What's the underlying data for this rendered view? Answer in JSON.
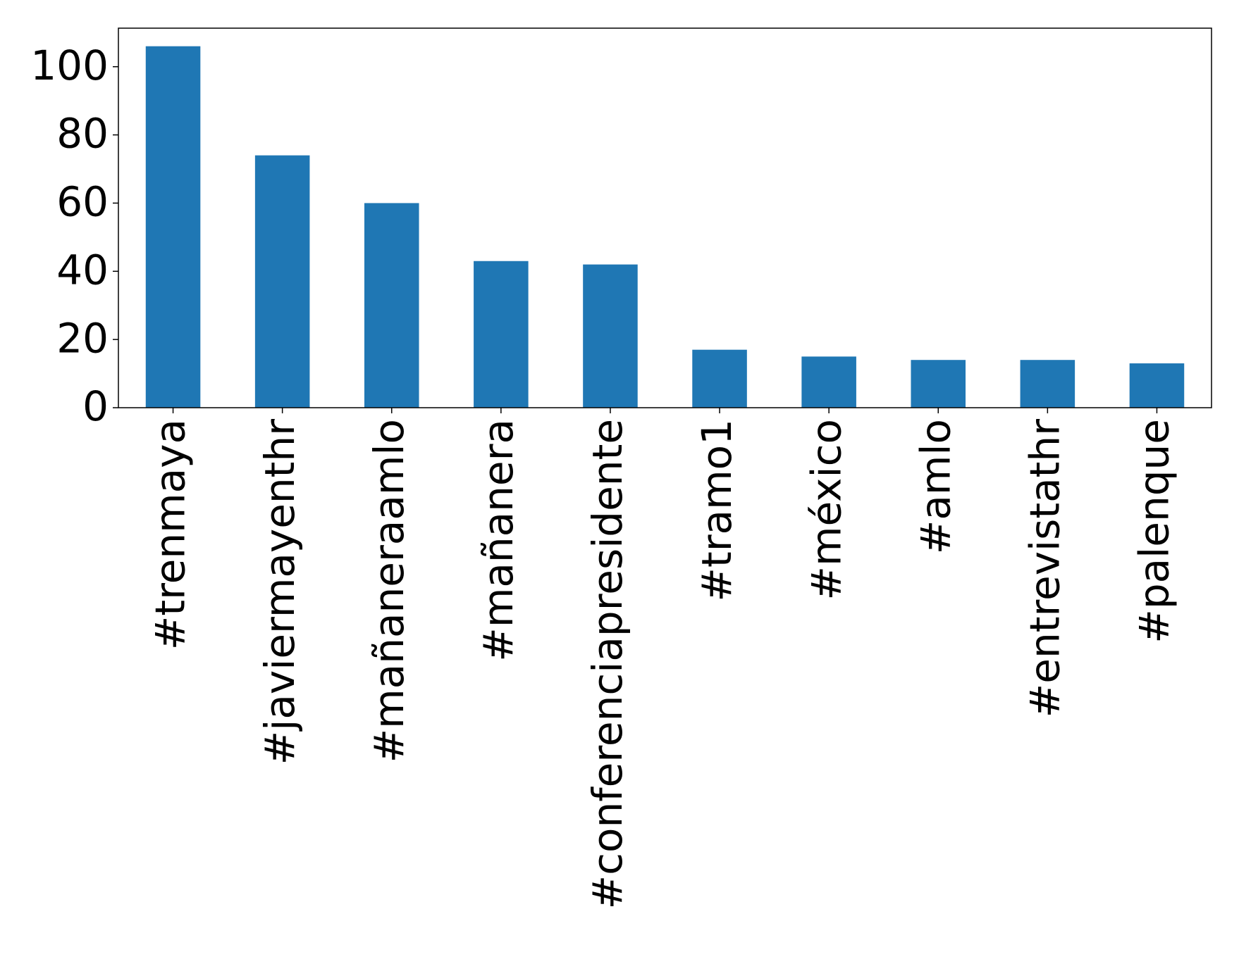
{
  "chart_data": {
    "type": "bar",
    "categories": [
      "#trenmaya",
      "#javiermayenthr",
      "#mañaneraamlo",
      "#mañanera",
      "#conferenciapresidente",
      "#tramo1",
      "#méxico",
      "#amlo",
      "#entrevistathr",
      "#palenque"
    ],
    "values": [
      106,
      74,
      60,
      43,
      42,
      17,
      15,
      14,
      14,
      13
    ],
    "color": "#1f77b4",
    "ylim": [
      0,
      111.3
    ],
    "yticks": [
      0,
      20,
      40,
      60,
      80,
      100
    ],
    "grid": false
  }
}
